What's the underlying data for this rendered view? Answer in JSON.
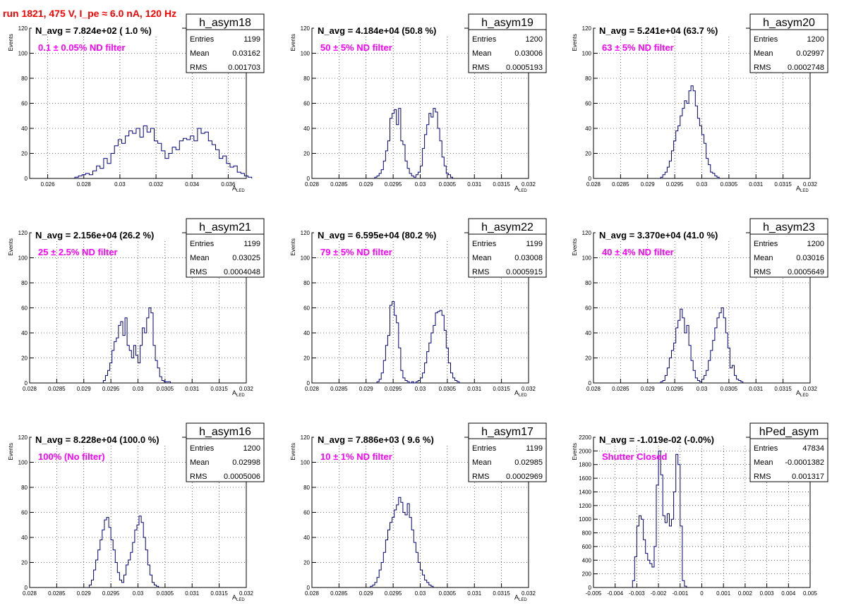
{
  "header": {
    "title": "run 1821,   475 V, I_pe ≈ 6.0 nA, 120 Hz",
    "title_color": "#ff0000"
  },
  "colors": {
    "histogram_line": "#000080",
    "annotation_text": "#ff00ff",
    "grid": "#000000"
  },
  "axis_labels": {
    "y": "Events",
    "x_main": "A",
    "x_sub": "LED"
  },
  "stat_labels": {
    "entries": "Entries",
    "mean": "Mean",
    "rms": "RMS"
  },
  "chart_data": [
    {
      "type": "bar",
      "name": "h_asym18",
      "navg": "N_avg = 7.824e+02 ( 1.0 %)",
      "note": "0.1 ± 0.05% ND filter",
      "stats": {
        "entries": "1199",
        "mean": "0.03162",
        "rms": "0.001703"
      },
      "xlim": [
        0.025,
        0.037
      ],
      "ylim": [
        0,
        120
      ],
      "xticks": [
        0.026,
        0.028,
        0.03,
        0.032,
        0.034,
        0.036
      ],
      "xtick_labels": [
        "0.026",
        "0.028",
        "0.03",
        "0.032",
        "0.034",
        "0.036"
      ],
      "yticks": [
        0,
        20,
        40,
        60,
        80,
        100,
        120
      ],
      "ytick_labels": [
        "0",
        "20",
        "40",
        "60",
        "80",
        "100",
        "120"
      ],
      "show_xlabel": true,
      "bins": {
        "start": 0.0275,
        "width": 0.0002,
        "counts": [
          1,
          2,
          3,
          4,
          3,
          6,
          10,
          8,
          16,
          12,
          20,
          26,
          31,
          28,
          34,
          38,
          36,
          40,
          33,
          42,
          37,
          40,
          30,
          28,
          22,
          16,
          20,
          25,
          23,
          30,
          32,
          31,
          34,
          30,
          40,
          36,
          37,
          30,
          27,
          23,
          16,
          18,
          12,
          9,
          10,
          5,
          4,
          2,
          1
        ]
      }
    },
    {
      "type": "bar",
      "name": "h_asym19",
      "navg": "N_avg = 4.184e+04 (50.8 %)",
      "note": "50 ± 5% ND filter",
      "stats": {
        "entries": "1200",
        "mean": "0.03006",
        "rms": "0.0005193"
      },
      "xlim": [
        0.028,
        0.032
      ],
      "ylim": [
        0,
        120
      ],
      "xticks": [
        0.028,
        0.0285,
        0.029,
        0.0295,
        0.03,
        0.0305,
        0.031,
        0.0315,
        0.032
      ],
      "xtick_labels": [
        "0.028",
        "0.0285",
        "0.029",
        "0.0295",
        "0.03",
        "0.0305",
        "0.031",
        "0.0315",
        "0.032"
      ],
      "yticks": [
        0,
        20,
        40,
        60,
        80,
        100,
        120
      ],
      "ytick_labels": [
        "0",
        "20",
        "40",
        "60",
        "80",
        "100",
        "120"
      ],
      "show_xlabel": true,
      "bins": {
        "start": 0.02916,
        "width": 4e-05,
        "counts": [
          1,
          2,
          4,
          7,
          14,
          22,
          30,
          48,
          52,
          55,
          43,
          56,
          30,
          27,
          14,
          8,
          4,
          2,
          1,
          3,
          5,
          10,
          24,
          35,
          43,
          52,
          49,
          56,
          53,
          40,
          30,
          17,
          10,
          4,
          3,
          1
        ]
      }
    },
    {
      "type": "bar",
      "name": "h_asym20",
      "navg": "N_avg = 5.241e+04 (63.7 %)",
      "note": "63 ± 5% ND filter",
      "stats": {
        "entries": "1200",
        "mean": "0.02997",
        "rms": "0.0002748"
      },
      "xlim": [
        0.028,
        0.032
      ],
      "ylim": [
        0,
        120
      ],
      "xticks": [
        0.028,
        0.0285,
        0.029,
        0.0295,
        0.03,
        0.0305,
        0.031,
        0.0315,
        0.032
      ],
      "xtick_labels": [
        "0.028",
        "0.0285",
        "0.029",
        "0.0295",
        "0.03",
        "0.0305",
        "0.031",
        "0.0315",
        "0.032"
      ],
      "yticks": [
        0,
        20,
        40,
        60,
        80,
        100,
        120
      ],
      "ytick_labels": [
        "0",
        "20",
        "40",
        "60",
        "80",
        "100",
        "120"
      ],
      "show_xlabel": true,
      "bins": {
        "start": 0.02924,
        "width": 4e-05,
        "counts": [
          1,
          3,
          5,
          9,
          14,
          22,
          30,
          38,
          42,
          50,
          56,
          62,
          60,
          70,
          74,
          70,
          58,
          48,
          42,
          35,
          28,
          16,
          11,
          5,
          4,
          2,
          1
        ]
      }
    },
    {
      "type": "bar",
      "name": "h_asym21",
      "navg": "N_avg = 2.156e+04 (26.2 %)",
      "note": "25 ± 2.5% ND filter",
      "stats": {
        "entries": "1199",
        "mean": "0.03025",
        "rms": "0.0004048"
      },
      "xlim": [
        0.028,
        0.032
      ],
      "ylim": [
        0,
        120
      ],
      "xticks": [
        0.028,
        0.0285,
        0.029,
        0.0295,
        0.03,
        0.0305,
        0.031,
        0.0315,
        0.032
      ],
      "xtick_labels": [
        "0.028",
        "0.0285",
        "0.029",
        "0.0295",
        "0.03",
        "0.0305",
        "0.031",
        "0.0315",
        "0.032"
      ],
      "yticks": [
        0,
        20,
        40,
        60,
        80,
        100,
        120
      ],
      "ytick_labels": [
        "0",
        "20",
        "40",
        "60",
        "80",
        "100",
        "120"
      ],
      "show_xlabel": true,
      "bins": {
        "start": 0.02936,
        "width": 4e-05,
        "counts": [
          2,
          6,
          10,
          16,
          26,
          33,
          36,
          46,
          49,
          38,
          52,
          30,
          26,
          20,
          30,
          22,
          16,
          30,
          44,
          40,
          52,
          60,
          56,
          30,
          18,
          12,
          5,
          2,
          1,
          1,
          1
        ]
      }
    },
    {
      "type": "bar",
      "name": "h_asym22",
      "navg": "N_avg = 6.595e+04 (80.2 %)",
      "note": "79 ± 5% ND filter",
      "stats": {
        "entries": "1199",
        "mean": "0.03008",
        "rms": "0.0005915"
      },
      "xlim": [
        0.028,
        0.032
      ],
      "ylim": [
        0,
        120
      ],
      "xticks": [
        0.028,
        0.0285,
        0.029,
        0.0295,
        0.03,
        0.0305,
        0.031,
        0.0315,
        0.032
      ],
      "xtick_labels": [
        "0.028",
        "0.0285",
        "0.029",
        "0.0295",
        "0.03",
        "0.0305",
        "0.031",
        "0.0315",
        "0.032"
      ],
      "yticks": [
        0,
        20,
        40,
        60,
        80,
        100,
        120
      ],
      "ytick_labels": [
        "0",
        "20",
        "40",
        "60",
        "80",
        "100",
        "120"
      ],
      "show_xlabel": true,
      "bins": {
        "start": 0.0292,
        "width": 4e-05,
        "counts": [
          1,
          3,
          8,
          18,
          30,
          38,
          62,
          65,
          54,
          48,
          28,
          10,
          4,
          2,
          1,
          0,
          1,
          0,
          1,
          2,
          4,
          8,
          16,
          25,
          32,
          40,
          46,
          56,
          57,
          58,
          54,
          42,
          28,
          16,
          8,
          4,
          2,
          1
        ]
      }
    },
    {
      "type": "bar",
      "name": "h_asym23",
      "navg": "N_avg = 3.370e+04 (41.0 %)",
      "note": "40 ± 4% ND filter",
      "stats": {
        "entries": "1200",
        "mean": "0.03016",
        "rms": "0.0005649"
      },
      "xlim": [
        0.028,
        0.032
      ],
      "ylim": [
        0,
        120
      ],
      "xticks": [
        0.028,
        0.0285,
        0.029,
        0.0295,
        0.03,
        0.0305,
        0.031,
        0.0315,
        0.032
      ],
      "xtick_labels": [
        "0.028",
        "0.0285",
        "0.029",
        "0.0295",
        "0.03",
        "0.0305",
        "0.031",
        "0.0315",
        "0.032"
      ],
      "yticks": [
        0,
        20,
        40,
        60,
        80,
        100,
        120
      ],
      "ytick_labels": [
        "0",
        "20",
        "40",
        "60",
        "80",
        "100",
        "120"
      ],
      "show_xlabel": true,
      "bins": {
        "start": 0.02924,
        "width": 4e-05,
        "counts": [
          1,
          2,
          6,
          12,
          20,
          26,
          32,
          44,
          50,
          59,
          52,
          40,
          46,
          30,
          18,
          10,
          4,
          2,
          1,
          3,
          6,
          10,
          18,
          26,
          34,
          44,
          52,
          56,
          60,
          52,
          40,
          28,
          12,
          14,
          6,
          3,
          2,
          1
        ]
      }
    },
    {
      "type": "bar",
      "name": "h_asym16",
      "navg": "N_avg = 8.228e+04 (100.0 %)",
      "note": "100% (No filter)",
      "stats": {
        "entries": "1200",
        "mean": "0.02998",
        "rms": "0.0005006"
      },
      "xlim": [
        0.028,
        0.032
      ],
      "ylim": [
        0,
        120
      ],
      "xticks": [
        0.028,
        0.0285,
        0.029,
        0.0295,
        0.03,
        0.0305,
        0.031,
        0.0315,
        0.032
      ],
      "xtick_labels": [
        "0.028",
        "0.0285",
        "0.029",
        "0.0295",
        "0.03",
        "0.0305",
        "0.031",
        "0.0315",
        "0.032"
      ],
      "yticks": [
        0,
        20,
        40,
        60,
        80,
        100,
        120
      ],
      "ytick_labels": [
        "0",
        "20",
        "40",
        "60",
        "80",
        "100",
        "120"
      ],
      "show_xlabel": true,
      "bins": {
        "start": 0.0291,
        "width": 4e-05,
        "counts": [
          2,
          6,
          14,
          22,
          30,
          38,
          46,
          54,
          56,
          48,
          38,
          30,
          20,
          12,
          6,
          4,
          10,
          18,
          22,
          28,
          36,
          46,
          50,
          57,
          52,
          40,
          30,
          18,
          10,
          4,
          2,
          1
        ]
      }
    },
    {
      "type": "bar",
      "name": "h_asym17",
      "navg": "N_avg = 7.886e+03 ( 9.6 %)",
      "note": "10 ± 1% ND filter",
      "stats": {
        "entries": "1199",
        "mean": "0.02985",
        "rms": "0.0002969"
      },
      "xlim": [
        0.028,
        0.032
      ],
      "ylim": [
        0,
        120
      ],
      "xticks": [
        0.028,
        0.0285,
        0.029,
        0.0295,
        0.03,
        0.0305,
        0.031,
        0.0315,
        0.032
      ],
      "xtick_labels": [
        "0.028",
        "0.0285",
        "0.029",
        "0.0295",
        "0.03",
        "0.0305",
        "0.031",
        "0.0315",
        "0.032"
      ],
      "yticks": [
        0,
        20,
        40,
        60,
        80,
        100,
        120
      ],
      "ytick_labels": [
        "0",
        "20",
        "40",
        "60",
        "80",
        "100",
        "120"
      ],
      "show_xlabel": true,
      "bins": {
        "start": 0.02908,
        "width": 4e-05,
        "counts": [
          1,
          2,
          4,
          8,
          14,
          20,
          28,
          38,
          46,
          52,
          56,
          62,
          66,
          72,
          68,
          60,
          58,
          67,
          56,
          46,
          36,
          28,
          20,
          14,
          10,
          6,
          4,
          2,
          1
        ]
      }
    },
    {
      "type": "bar",
      "name": "hPed_asym",
      "navg": "N_avg = -1.019e-02 (-0.0%)",
      "note": "Shutter Closed",
      "stats": {
        "entries": "47834",
        "mean": "-0.0001382",
        "rms": "0.001317"
      },
      "xlim": [
        -0.005,
        0.005
      ],
      "ylim": [
        0,
        2200
      ],
      "xticks": [
        -0.005,
        -0.004,
        -0.003,
        -0.002,
        -0.001,
        0,
        0.001,
        0.002,
        0.003,
        0.004,
        0.005
      ],
      "xtick_labels": [
        "-0.005",
        "-0.004",
        "-0.003",
        "-0.002",
        "-0.001",
        "0",
        "0.001",
        "0.002",
        "0.003",
        "0.004",
        "0.005"
      ],
      "yticks": [
        0,
        200,
        400,
        600,
        800,
        1000,
        1200,
        1400,
        1600,
        1800,
        2000,
        2200
      ],
      "ytick_labels": [
        "0",
        "200",
        "400",
        "600",
        "800",
        "1000",
        "1200",
        "1400",
        "1600",
        "1800",
        "2000",
        "2200"
      ],
      "show_xlabel": false,
      "bins": {
        "start": -0.0032,
        "width": 0.0001,
        "counts": [
          100,
          450,
          900,
          1050,
          1000,
          700,
          500,
          400,
          350,
          300,
          600,
          1500,
          2000,
          1650,
          1050,
          950,
          1080,
          900,
          1000,
          1400,
          1950,
          1800,
          900,
          100,
          20
        ]
      }
    }
  ]
}
